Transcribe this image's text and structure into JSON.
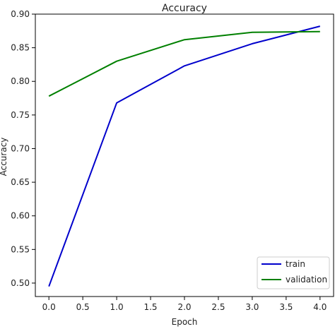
{
  "chart_data": {
    "type": "line",
    "title": "Accuracy",
    "xlabel": "Epoch",
    "ylabel": "Accuracy",
    "x": [
      0,
      1,
      2,
      3,
      4
    ],
    "xlim": [
      -0.2,
      4.2
    ],
    "ylim": [
      0.48,
      0.9
    ],
    "xticks": [
      0.0,
      0.5,
      1.0,
      1.5,
      2.0,
      2.5,
      3.0,
      3.5,
      4.0
    ],
    "yticks": [
      0.5,
      0.55,
      0.6,
      0.65,
      0.7,
      0.75,
      0.8,
      0.85,
      0.9
    ],
    "series": [
      {
        "name": "train",
        "color": "#0000cc",
        "values": [
          0.495,
          0.768,
          0.823,
          0.856,
          0.882
        ]
      },
      {
        "name": "validation",
        "color": "#008000",
        "values": [
          0.778,
          0.83,
          0.862,
          0.873,
          0.874
        ]
      }
    ],
    "grid": false,
    "legend": "bottom-right"
  }
}
